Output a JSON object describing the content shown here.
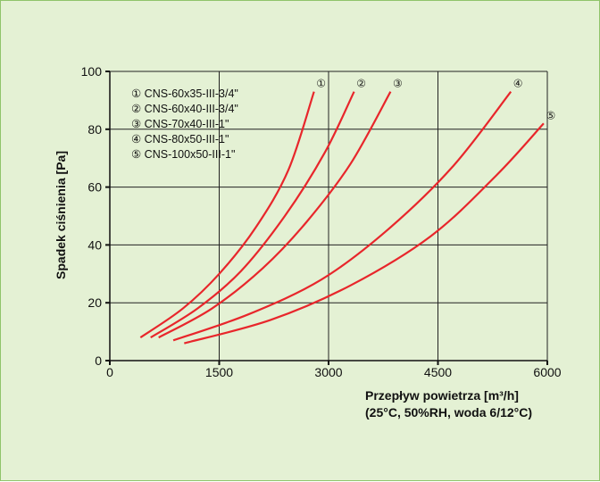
{
  "chart_data": {
    "type": "line",
    "ylabel": "Spadek  ciśnienia [Pa]",
    "xlabel_line1": "Przepływ  powietrza [m³/h]",
    "xlabel_line2": "(25°C, 50%RH, woda 6/12°C)",
    "xlim": [
      0,
      6000
    ],
    "ylim": [
      0,
      100
    ],
    "x_ticks": [
      "0",
      "1500",
      "3000",
      "4500",
      "6000"
    ],
    "y_ticks": [
      "0",
      "20",
      "40",
      "60",
      "80",
      "100"
    ],
    "grid": true,
    "legend_position": "top-left",
    "series": [
      {
        "marker": "①",
        "name": "CNS-60x35-III-3/4\"",
        "color": "#e8262b",
        "points": [
          [
            420,
            8
          ],
          [
            1000,
            18
          ],
          [
            1500,
            30
          ],
          [
            2000,
            46
          ],
          [
            2450,
            66
          ],
          [
            2800,
            93
          ]
        ]
      },
      {
        "marker": "②",
        "name": "CNS-60x40-III-3/4\"",
        "color": "#e8262b",
        "points": [
          [
            560,
            8
          ],
          [
            1200,
            18
          ],
          [
            1800,
            31
          ],
          [
            2400,
            50
          ],
          [
            2950,
            72
          ],
          [
            3350,
            93
          ]
        ]
      },
      {
        "marker": "③",
        "name": "CNS-70x40-III-1\"",
        "color": "#e8262b",
        "points": [
          [
            670,
            8
          ],
          [
            1400,
            18
          ],
          [
            2100,
            32
          ],
          [
            2700,
            48
          ],
          [
            3300,
            68
          ],
          [
            3850,
            93
          ]
        ]
      },
      {
        "marker": "④",
        "name": "CNS-80x50-III-1\"",
        "color": "#e8262b",
        "points": [
          [
            870,
            7
          ],
          [
            1900,
            16
          ],
          [
            2900,
            28
          ],
          [
            3800,
            45
          ],
          [
            4700,
            67
          ],
          [
            5500,
            93
          ]
        ]
      },
      {
        "marker": "⑤",
        "name": "CNS-100x50-III-1\"",
        "color": "#e8262b",
        "points": [
          [
            1020,
            6
          ],
          [
            2200,
            14
          ],
          [
            3300,
            26
          ],
          [
            4400,
            43
          ],
          [
            5300,
            64
          ],
          [
            5950,
            82
          ]
        ]
      }
    ]
  }
}
